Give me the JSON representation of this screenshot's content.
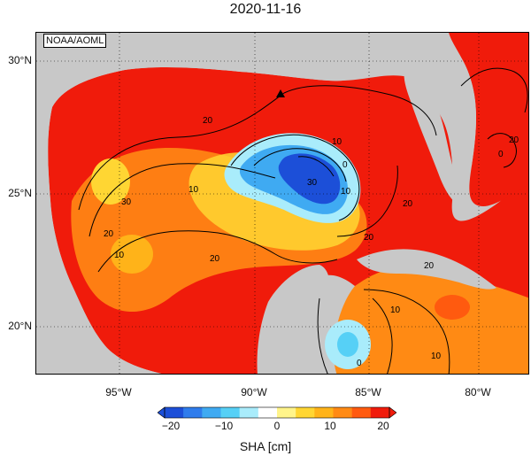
{
  "title": "2020-11-16",
  "credit": "NOAA/AOML",
  "map": {
    "region": "Gulf of Mexico",
    "variable": "SHA",
    "lat_ticks": [
      "30°N",
      "25°N",
      "20°N"
    ],
    "lon_ticks": [
      "95°W",
      "90°W",
      "85°W",
      "80°W"
    ],
    "land_color": "#c8c8c8",
    "grid": "dotted",
    "contour_labels": [
      "20",
      "10",
      "20",
      "10",
      "0",
      "30",
      "10",
      "20",
      "20",
      "10",
      "20",
      "30",
      "20",
      "10",
      "0",
      "10",
      "0",
      "20"
    ],
    "marker": "triangle"
  },
  "colorbar": {
    "ticks": [
      "−20",
      "−10",
      "0",
      "10",
      "20"
    ],
    "label": "SHA [cm]",
    "colors": [
      "#1c4fd8",
      "#2f7cec",
      "#3faaf2",
      "#56d0f6",
      "#a9ecfb",
      "#ffffff",
      "#fff48a",
      "#ffd633",
      "#ffb319",
      "#ff8a14",
      "#ff5a0f",
      "#f01b0b"
    ]
  }
}
